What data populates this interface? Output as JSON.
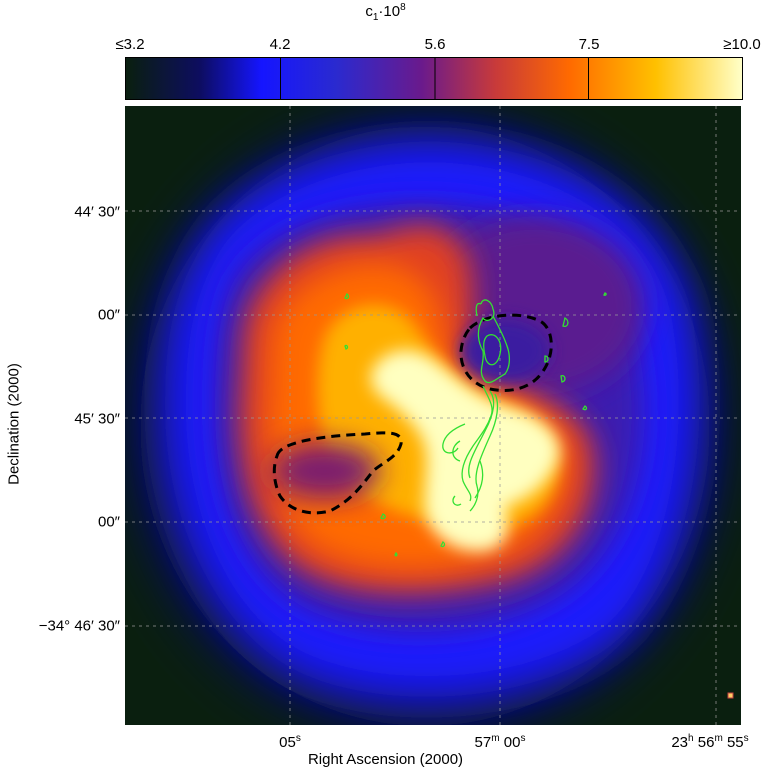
{
  "colorbar": {
    "title_base": "c",
    "title_sub": "1",
    "title_mid": "·10",
    "title_sup": "8",
    "ticks": [
      "≤3.2",
      "4.2",
      "5.6",
      "7.5",
      "≥10.0"
    ],
    "colors": [
      "#0a1f0f",
      "#1515ff",
      "#6a1a8c",
      "#ff6a00",
      "#ffd000",
      "#ffffc8"
    ]
  },
  "axes": {
    "x_title": "Right Ascension (2000)",
    "y_title": "Declination (2000)",
    "x_ticks": [
      {
        "main": "05",
        "sup": "s"
      },
      {
        "main": "57",
        "sup1": "m",
        "main2": " 00",
        "sup2": "s"
      },
      {
        "main": "23",
        "sup1": "h",
        "main2": " 56",
        "sup2": "m",
        "main3": " 55",
        "sup3": "s"
      }
    ],
    "y_ticks": [
      "44′ 30″",
      "00″",
      "45′ 30″",
      "00″",
      "−34° 46′ 30″"
    ]
  },
  "map": {
    "background": "#0a1f0f",
    "contour_color": "#33e033",
    "dashed_contour_color": "#000000"
  }
}
